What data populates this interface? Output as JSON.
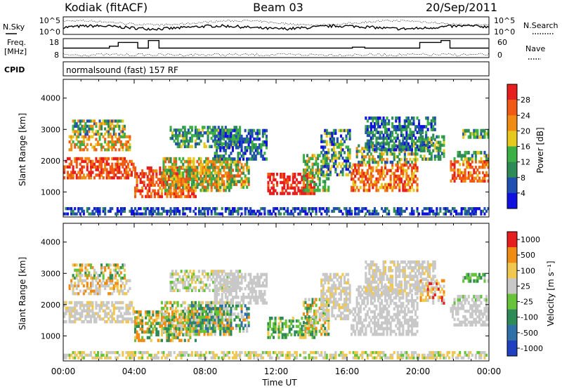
{
  "header": {
    "station": "Kodiak (fitACF)",
    "beam": "Beam 03",
    "date": "20/Sep/2011"
  },
  "left_labels": {
    "nsky": "N.Sky",
    "freq_line1": "Freq.",
    "freq_line2": "[MHz]",
    "cpid": "CPID"
  },
  "right_labels": {
    "nsearch": "N.Search",
    "nave": "Nave"
  },
  "cpid_text": "normalsound (fast) 157 RF",
  "chart_data": [
    {
      "type": "line",
      "name": "noise",
      "series_labels": [
        "N.Sky",
        "N.Search"
      ],
      "left_axis": {
        "ticks": [
          "10^5",
          "10^0"
        ]
      },
      "right_axis": {
        "ticks": [
          "10^5",
          "10^0"
        ]
      }
    },
    {
      "type": "line",
      "name": "freq-nave",
      "left_axis": {
        "label": "Freq. [MHz]",
        "ticks": [
          18,
          8
        ],
        "range": [
          8,
          18
        ]
      },
      "right_axis": {
        "label": "Nave",
        "ticks": [
          60,
          0
        ],
        "range": [
          0,
          60
        ]
      },
      "freq_steps": [
        {
          "t": 0,
          "f": 13
        },
        {
          "t": 2.6,
          "f": 14
        },
        {
          "t": 3.1,
          "f": 16
        },
        {
          "t": 4.2,
          "f": 13
        },
        {
          "t": 4.8,
          "f": 17
        },
        {
          "t": 5.4,
          "f": 13
        },
        {
          "t": 16.3,
          "f": 13.5
        },
        {
          "t": 17.0,
          "f": 13
        },
        {
          "t": 20.1,
          "f": 16
        },
        {
          "t": 21.3,
          "f": 17
        },
        {
          "t": 21.8,
          "f": 13
        },
        {
          "t": 24,
          "f": 13
        }
      ]
    },
    {
      "type": "heatmap",
      "name": "power",
      "ylabel": "Slant Range [km]",
      "yticks": [
        1000,
        2000,
        3000,
        4000
      ],
      "yrange": [
        200,
        4600
      ],
      "colorbar": {
        "label": "Power [dB]",
        "ticks": [
          4,
          8,
          12,
          16,
          20,
          24,
          28
        ]
      }
    },
    {
      "type": "heatmap",
      "name": "velocity",
      "ylabel": "Slant Range [km]",
      "yticks": [
        1000,
        2000,
        3000,
        4000
      ],
      "yrange": [
        200,
        4600
      ],
      "colorbar": {
        "label": "Velocity [m s⁻¹]",
        "ticks": [
          1000,
          500,
          100,
          25,
          -25,
          -100,
          -500,
          -1000
        ]
      }
    }
  ],
  "x_axis": {
    "label": "Time UT",
    "ticks": [
      "00:00",
      "04:00",
      "08:00",
      "12:00",
      "16:00",
      "20:00",
      "00:00"
    ],
    "range_hours": [
      0,
      24
    ]
  },
  "colors": {
    "power_scale": [
      "#1010e0",
      "#1f4fb0",
      "#2e8b57",
      "#3cb044",
      "#e6c81e",
      "#f08c14",
      "#f05a14",
      "#e61e1e"
    ],
    "velocity_scale": [
      "#2040c0",
      "#2f70a8",
      "#2e8b57",
      "#66c33a",
      "#c8c8c8",
      "#f0c850",
      "#f08c14",
      "#e61e1e"
    ]
  }
}
